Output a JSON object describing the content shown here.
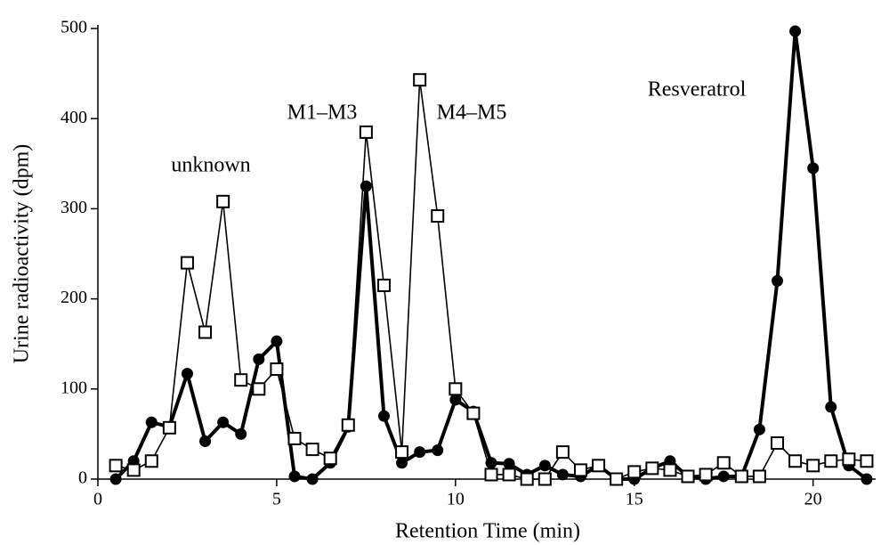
{
  "chart_data": {
    "type": "line",
    "x_label": "Retention Time (min)",
    "y_label": "Urine radioactivity (dpm)",
    "x": [
      0.5,
      1,
      1.5,
      2,
      2.5,
      3,
      3.5,
      4,
      4.5,
      5,
      5.5,
      6,
      6.5,
      7,
      7.5,
      8,
      8.5,
      9,
      9.5,
      10,
      10.5,
      11,
      11.5,
      12,
      12.5,
      13,
      13.5,
      14,
      14.5,
      15,
      15.5,
      16,
      16.5,
      17,
      17.5,
      18,
      18.5,
      19,
      19.5,
      20,
      20.5,
      21,
      21.5
    ],
    "series": [
      {
        "color": "#000000",
        "marker": "filled-circle",
        "values": [
          0,
          20,
          63,
          58,
          117,
          42,
          63,
          50,
          133,
          153,
          3,
          0,
          18,
          58,
          325,
          70,
          18,
          30,
          32,
          88,
          75,
          18,
          17,
          5,
          15,
          5,
          3,
          15,
          0,
          0,
          12,
          20,
          3,
          0,
          3,
          3,
          55,
          220,
          497,
          345,
          80,
          15,
          0
        ]
      },
      {
        "color": "#000000",
        "marker": "open-square",
        "values": [
          15,
          10,
          20,
          57,
          240,
          163,
          308,
          110,
          100,
          122,
          45,
          33,
          23,
          60,
          385,
          215,
          30,
          443,
          292,
          100,
          73,
          5,
          5,
          0,
          0,
          30,
          10,
          15,
          0,
          8,
          12,
          10,
          3,
          5,
          18,
          3,
          3,
          40,
          20,
          15,
          20,
          22,
          20
        ]
      }
    ],
    "annotations": [
      "unknown",
      "M1–M3",
      "M4–M5",
      "Resveratrol"
    ],
    "xlim": [
      0,
      21.75
    ],
    "ylim": [
      0,
      500
    ],
    "xticks": [
      0,
      5,
      10,
      15,
      20
    ],
    "yticks": [
      0,
      100,
      200,
      300,
      400,
      500
    ]
  }
}
